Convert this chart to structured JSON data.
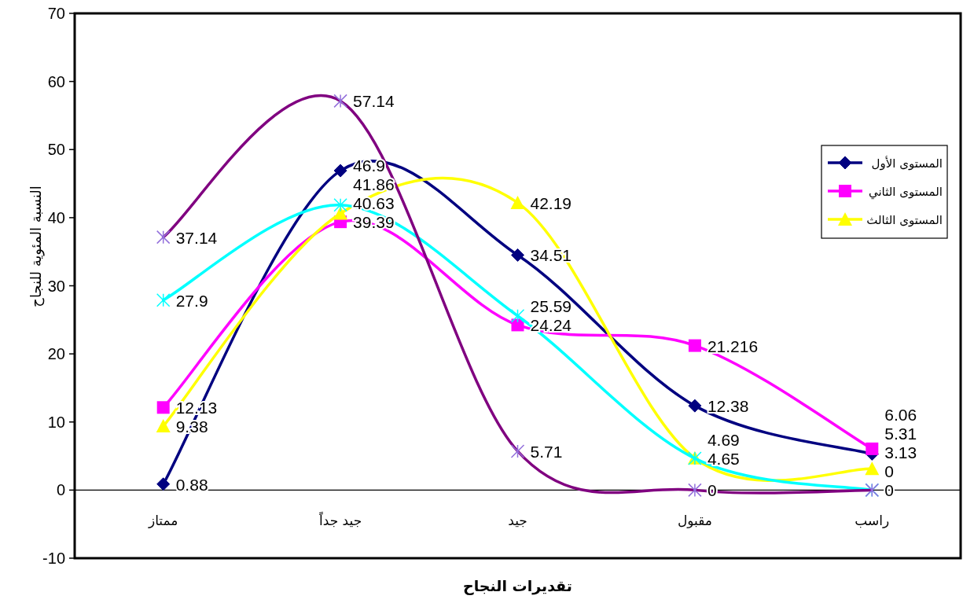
{
  "chart_data": {
    "type": "line",
    "xlabel": "تقديرات النجاح",
    "ylabel": "النسبة المئوية للنجاح",
    "categories": [
      "ممتاز",
      "جيد جداً",
      "جيد",
      "مقبول",
      "راسب"
    ],
    "series": [
      {
        "name": "المستوى الأول",
        "color": "#000080",
        "marker": "diamond",
        "values": [
          0.88,
          46.9,
          34.51,
          12.38,
          5.31
        ]
      },
      {
        "name": "المستوى الثاني",
        "color": "#ff00ff",
        "marker": "square",
        "values": [
          12.13,
          39.39,
          24.24,
          21.216,
          6.06
        ]
      },
      {
        "name": "المستوى الثالث",
        "color": "#ffff00",
        "marker": "triangle",
        "values": [
          9.38,
          40.63,
          42.19,
          4.69,
          3.13
        ]
      },
      {
        "color": "#00ffff",
        "marker": "cross",
        "values": [
          27.9,
          41.86,
          25.59,
          4.65,
          0
        ]
      },
      {
        "color": "#800080",
        "marker": "cross",
        "values": [
          37.14,
          57.14,
          5.71,
          0,
          0
        ]
      }
    ],
    "ylim": [
      -10,
      70
    ],
    "yticks": [
      -10,
      0,
      10,
      20,
      30,
      40,
      50,
      60,
      70
    ],
    "data_labels": true,
    "legend": "top right"
  }
}
